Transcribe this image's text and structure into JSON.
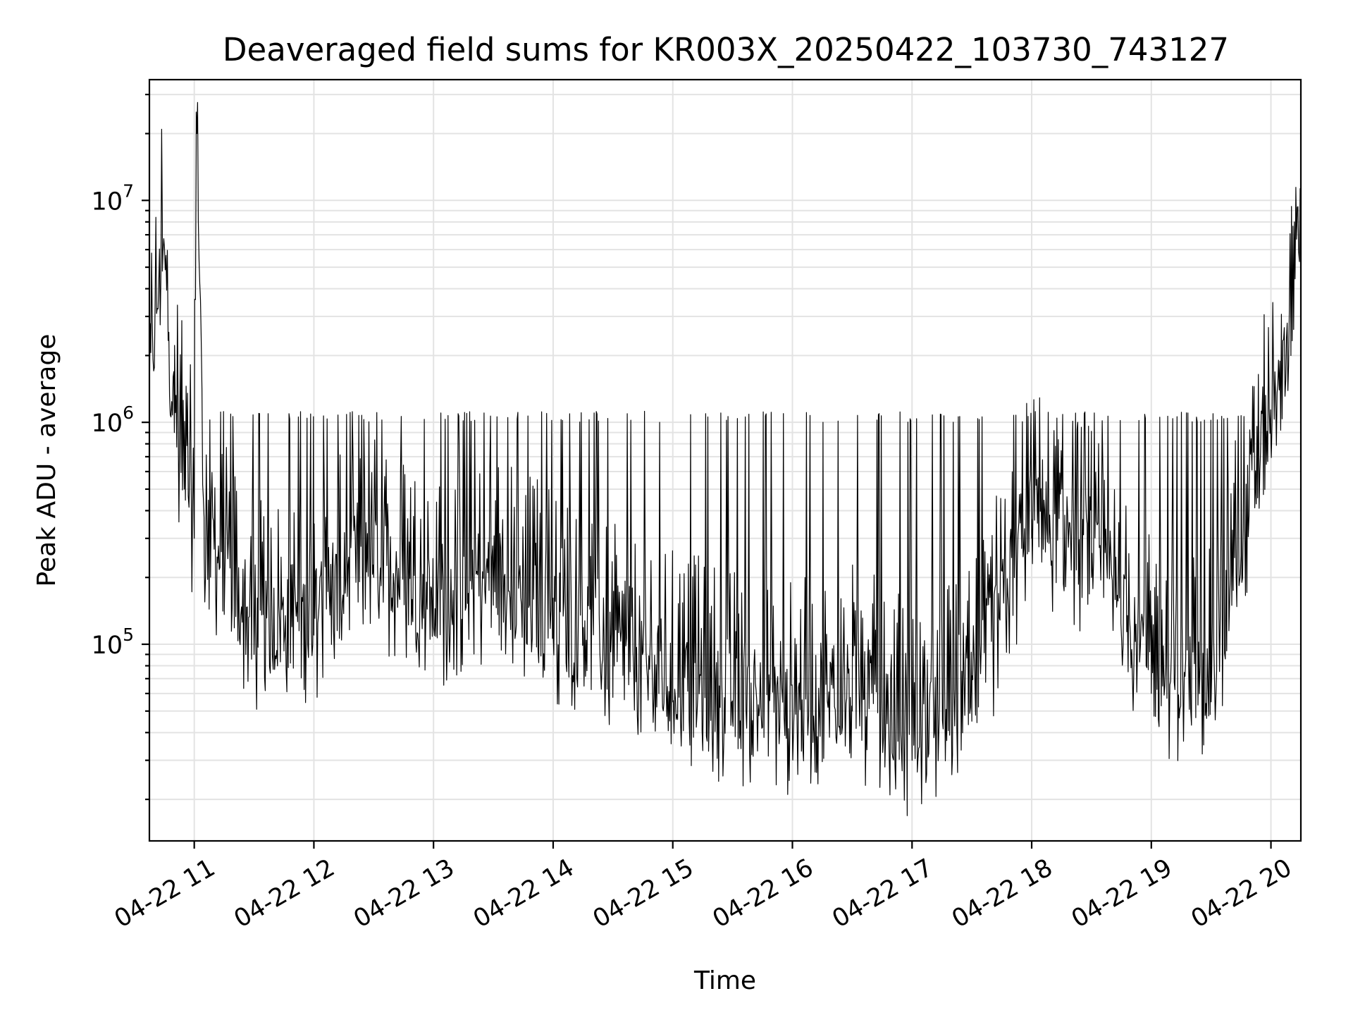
{
  "chart_data": {
    "type": "line",
    "title": "Deaveraged field sums for KR003X_20250422_103730_743127",
    "xlabel": "Time",
    "ylabel": "Peak ADU - average",
    "yscale": "log",
    "ylim": [
      13000,
      35000000
    ],
    "xlim": [
      "2025-04-22 10:37:30",
      "2025-04-22 20:15:00"
    ],
    "x_ticks": [
      "04-22 11",
      "04-22 12",
      "04-22 13",
      "04-22 14",
      "04-22 15",
      "04-22 16",
      "04-22 17",
      "04-22 18",
      "04-22 19",
      "04-22 20"
    ],
    "y_ticks": [
      {
        "base": "10",
        "exp": "5",
        "value": 100000
      },
      {
        "base": "10",
        "exp": "6",
        "value": 1000000
      },
      {
        "base": "10",
        "exp": "7",
        "value": 10000000
      }
    ],
    "grid": true,
    "line_color": "#000000",
    "series": [
      {
        "x": [
          "2025-04-22 10:37:30",
          "2025-04-22 10:44:00",
          "2025-04-22 10:50:00",
          "2025-04-22 10:55:00",
          "2025-04-22 11:00:00",
          "2025-04-22 11:01:00",
          "2025-04-22 11:05:00",
          "2025-04-22 11:15:00",
          "2025-04-22 11:30:00",
          "2025-04-22 11:45:00",
          "2025-04-22 12:00:00",
          "2025-04-22 12:30:00",
          "2025-04-22 13:00:00",
          "2025-04-22 13:30:00",
          "2025-04-22 14:00:00",
          "2025-04-22 14:30:00",
          "2025-04-22 15:00:00",
          "2025-04-22 15:30:00",
          "2025-04-22 16:00:00",
          "2025-04-22 16:30:00",
          "2025-04-22 17:00:00",
          "2025-04-22 17:30:00",
          "2025-04-22 18:00:00",
          "2025-04-22 18:30:00",
          "2025-04-22 19:00:00",
          "2025-04-22 19:30:00",
          "2025-04-22 19:45:00",
          "2025-04-22 20:00:00",
          "2025-04-22 20:10:00",
          "2025-04-22 20:15:00"
        ],
        "values": [
          1200000,
          4800000,
          900000,
          500000,
          300000,
          25000000,
          250000,
          180000,
          90000,
          100000,
          110000,
          200000,
          120000,
          150000,
          110000,
          70000,
          55000,
          45000,
          40000,
          50000,
          30000,
          45000,
          300000,
          200000,
          60000,
          55000,
          250000,
          800000,
          2000000,
          8500000
        ]
      }
    ]
  }
}
